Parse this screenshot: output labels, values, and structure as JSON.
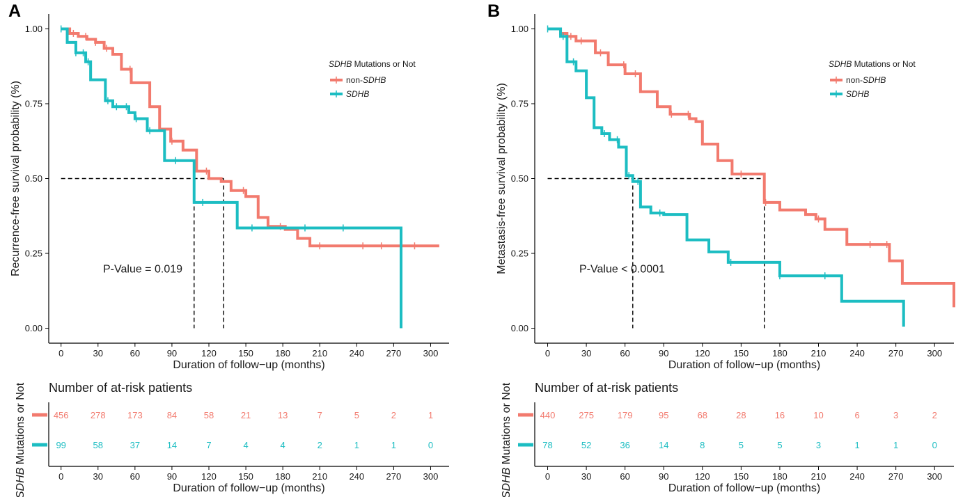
{
  "colors": {
    "non_sdhb": "#F27A6E",
    "sdhb": "#1CBDC2",
    "axis": "#000000",
    "ref": "#000000"
  },
  "chart_data": [
    {
      "type": "line",
      "panel": "A",
      "ylabel": "Recurrence-free survival probability (%)",
      "xlabel": "Duration of follow−up (months)",
      "xlim": [
        -10,
        315
      ],
      "ylim": [
        -0.05,
        1.05
      ],
      "xticks": [
        0,
        30,
        60,
        90,
        120,
        150,
        180,
        210,
        240,
        270,
        300
      ],
      "yticks": [
        0,
        0.25,
        0.5,
        0.75,
        1
      ],
      "ytick_labels": [
        "0.00",
        "0.25",
        "0.50",
        "0.75",
        "1.00"
      ],
      "legend": {
        "title_italic": "SDHB",
        "title_rest": " Mutations or Not",
        "position": "top-right"
      },
      "pvalue": "P-Value = 0.019",
      "medians": [
        108,
        132
      ],
      "series": [
        {
          "key": "non_sdhb",
          "name_prefix": "non-",
          "name_italic": "SDHB",
          "x": [
            0,
            7,
            14,
            21,
            28,
            35,
            42,
            49,
            57,
            65,
            72,
            80,
            89,
            99,
            110,
            120,
            130,
            138,
            150,
            160,
            168,
            182,
            192,
            202,
            210,
            225,
            240,
            255,
            265,
            276,
            285,
            300,
            307
          ],
          "y": [
            1.0,
            0.985,
            0.975,
            0.965,
            0.955,
            0.935,
            0.915,
            0.865,
            0.82,
            0.82,
            0.74,
            0.665,
            0.625,
            0.595,
            0.525,
            0.5,
            0.49,
            0.46,
            0.44,
            0.37,
            0.34,
            0.33,
            0.3,
            0.275,
            0.275,
            0.275,
            0.275,
            0.275,
            0.275,
            0.275,
            0.275,
            0.275,
            0.275
          ],
          "censor": [
            10,
            20,
            28,
            37,
            56,
            90,
            118,
            148,
            178,
            210,
            245,
            260,
            287
          ]
        },
        {
          "key": "sdhb",
          "name_prefix": "",
          "name_italic": "SDHB",
          "x": [
            0,
            5,
            12,
            20,
            24,
            34,
            36,
            42,
            50,
            55,
            60,
            70,
            80,
            84,
            95,
            108,
            120,
            131,
            143,
            160,
            180,
            220,
            229,
            262,
            275,
            276
          ],
          "y": [
            1.0,
            0.955,
            0.92,
            0.89,
            0.83,
            0.83,
            0.76,
            0.74,
            0.74,
            0.72,
            0.7,
            0.66,
            0.66,
            0.56,
            0.56,
            0.42,
            0.42,
            0.42,
            0.335,
            0.335,
            0.335,
            0.335,
            0.335,
            0.335,
            0.335,
            0.0
          ],
          "censor": [
            0,
            12,
            18,
            22,
            38,
            45,
            53,
            61,
            72,
            93,
            115,
            155,
            198,
            229
          ]
        }
      ],
      "risk_table": {
        "title": "Number of at-risk patients",
        "ylabel_italic": "SDHB",
        "ylabel_rest": " Mutations or Not",
        "xlabel": "Duration of follow−up (months)",
        "non_sdhb": [
          "456",
          "278",
          "173",
          "84",
          "58",
          "21",
          "13",
          "7",
          "5",
          "2",
          "1"
        ],
        "sdhb": [
          "99",
          "58",
          "37",
          "14",
          "7",
          "4",
          "4",
          "2",
          "1",
          "1",
          "0"
        ]
      }
    },
    {
      "type": "line",
      "panel": "B",
      "ylabel": "Metastasis-free survival probability (%)",
      "xlabel": "Duration of follow−up (months)",
      "xlim": [
        -10,
        315
      ],
      "ylim": [
        -0.05,
        1.05
      ],
      "xticks": [
        0,
        30,
        60,
        90,
        120,
        150,
        180,
        210,
        240,
        270,
        300
      ],
      "yticks": [
        0,
        0.25,
        0.5,
        0.75,
        1
      ],
      "ytick_labels": [
        "0.00",
        "0.25",
        "0.50",
        "0.75",
        "1.00"
      ],
      "legend": {
        "title_italic": "SDHB",
        "title_rest": " Mutations or Not",
        "position": "top-right"
      },
      "pvalue": "P-Value < 0.0001",
      "medians": [
        66,
        168
      ],
      "series": [
        {
          "key": "non_sdhb",
          "name_prefix": "non-",
          "name_italic": "SDHB",
          "x": [
            0,
            10,
            15,
            22,
            30,
            37,
            47,
            60,
            72,
            85,
            95,
            110,
            115,
            120,
            132,
            143,
            168,
            180,
            190,
            200,
            208,
            215,
            225,
            232,
            243,
            257,
            265,
            275,
            295,
            315
          ],
          "y": [
            1.0,
            0.985,
            0.975,
            0.96,
            0.96,
            0.92,
            0.88,
            0.85,
            0.79,
            0.74,
            0.715,
            0.7,
            0.69,
            0.615,
            0.56,
            0.515,
            0.42,
            0.395,
            0.395,
            0.38,
            0.365,
            0.33,
            0.33,
            0.28,
            0.28,
            0.28,
            0.225,
            0.15,
            0.15,
            0.07
          ],
          "censor": [
            18,
            26,
            41,
            59,
            68,
            96,
            109,
            150,
            169,
            210,
            250,
            263
          ]
        },
        {
          "key": "sdhb",
          "name_prefix": "",
          "name_italic": "SDHB",
          "x": [
            0,
            10,
            15,
            22,
            30,
            36,
            42,
            48,
            55,
            61,
            66,
            72,
            80,
            90,
            100,
            108,
            125,
            140,
            155,
            170,
            180,
            200,
            215,
            228,
            250,
            276
          ],
          "y": [
            1.0,
            0.975,
            0.89,
            0.86,
            0.77,
            0.67,
            0.65,
            0.63,
            0.605,
            0.51,
            0.49,
            0.405,
            0.385,
            0.38,
            0.38,
            0.295,
            0.255,
            0.22,
            0.22,
            0.22,
            0.175,
            0.175,
            0.175,
            0.09,
            0.09,
            0.005
          ],
          "censor": [
            0,
            12,
            20,
            44,
            54,
            63,
            70,
            87,
            142,
            180,
            215
          ]
        }
      ],
      "risk_table": {
        "title": "Number of at-risk patients",
        "ylabel_italic": "SDHB",
        "ylabel_rest": " Mutations or Not",
        "xlabel": "Duration of follow−up (months)",
        "non_sdhb": [
          "440",
          "275",
          "179",
          "95",
          "68",
          "28",
          "16",
          "10",
          "6",
          "3",
          "2"
        ],
        "sdhb": [
          "78",
          "52",
          "36",
          "14",
          "8",
          "5",
          "5",
          "3",
          "1",
          "1",
          "0"
        ]
      }
    }
  ]
}
